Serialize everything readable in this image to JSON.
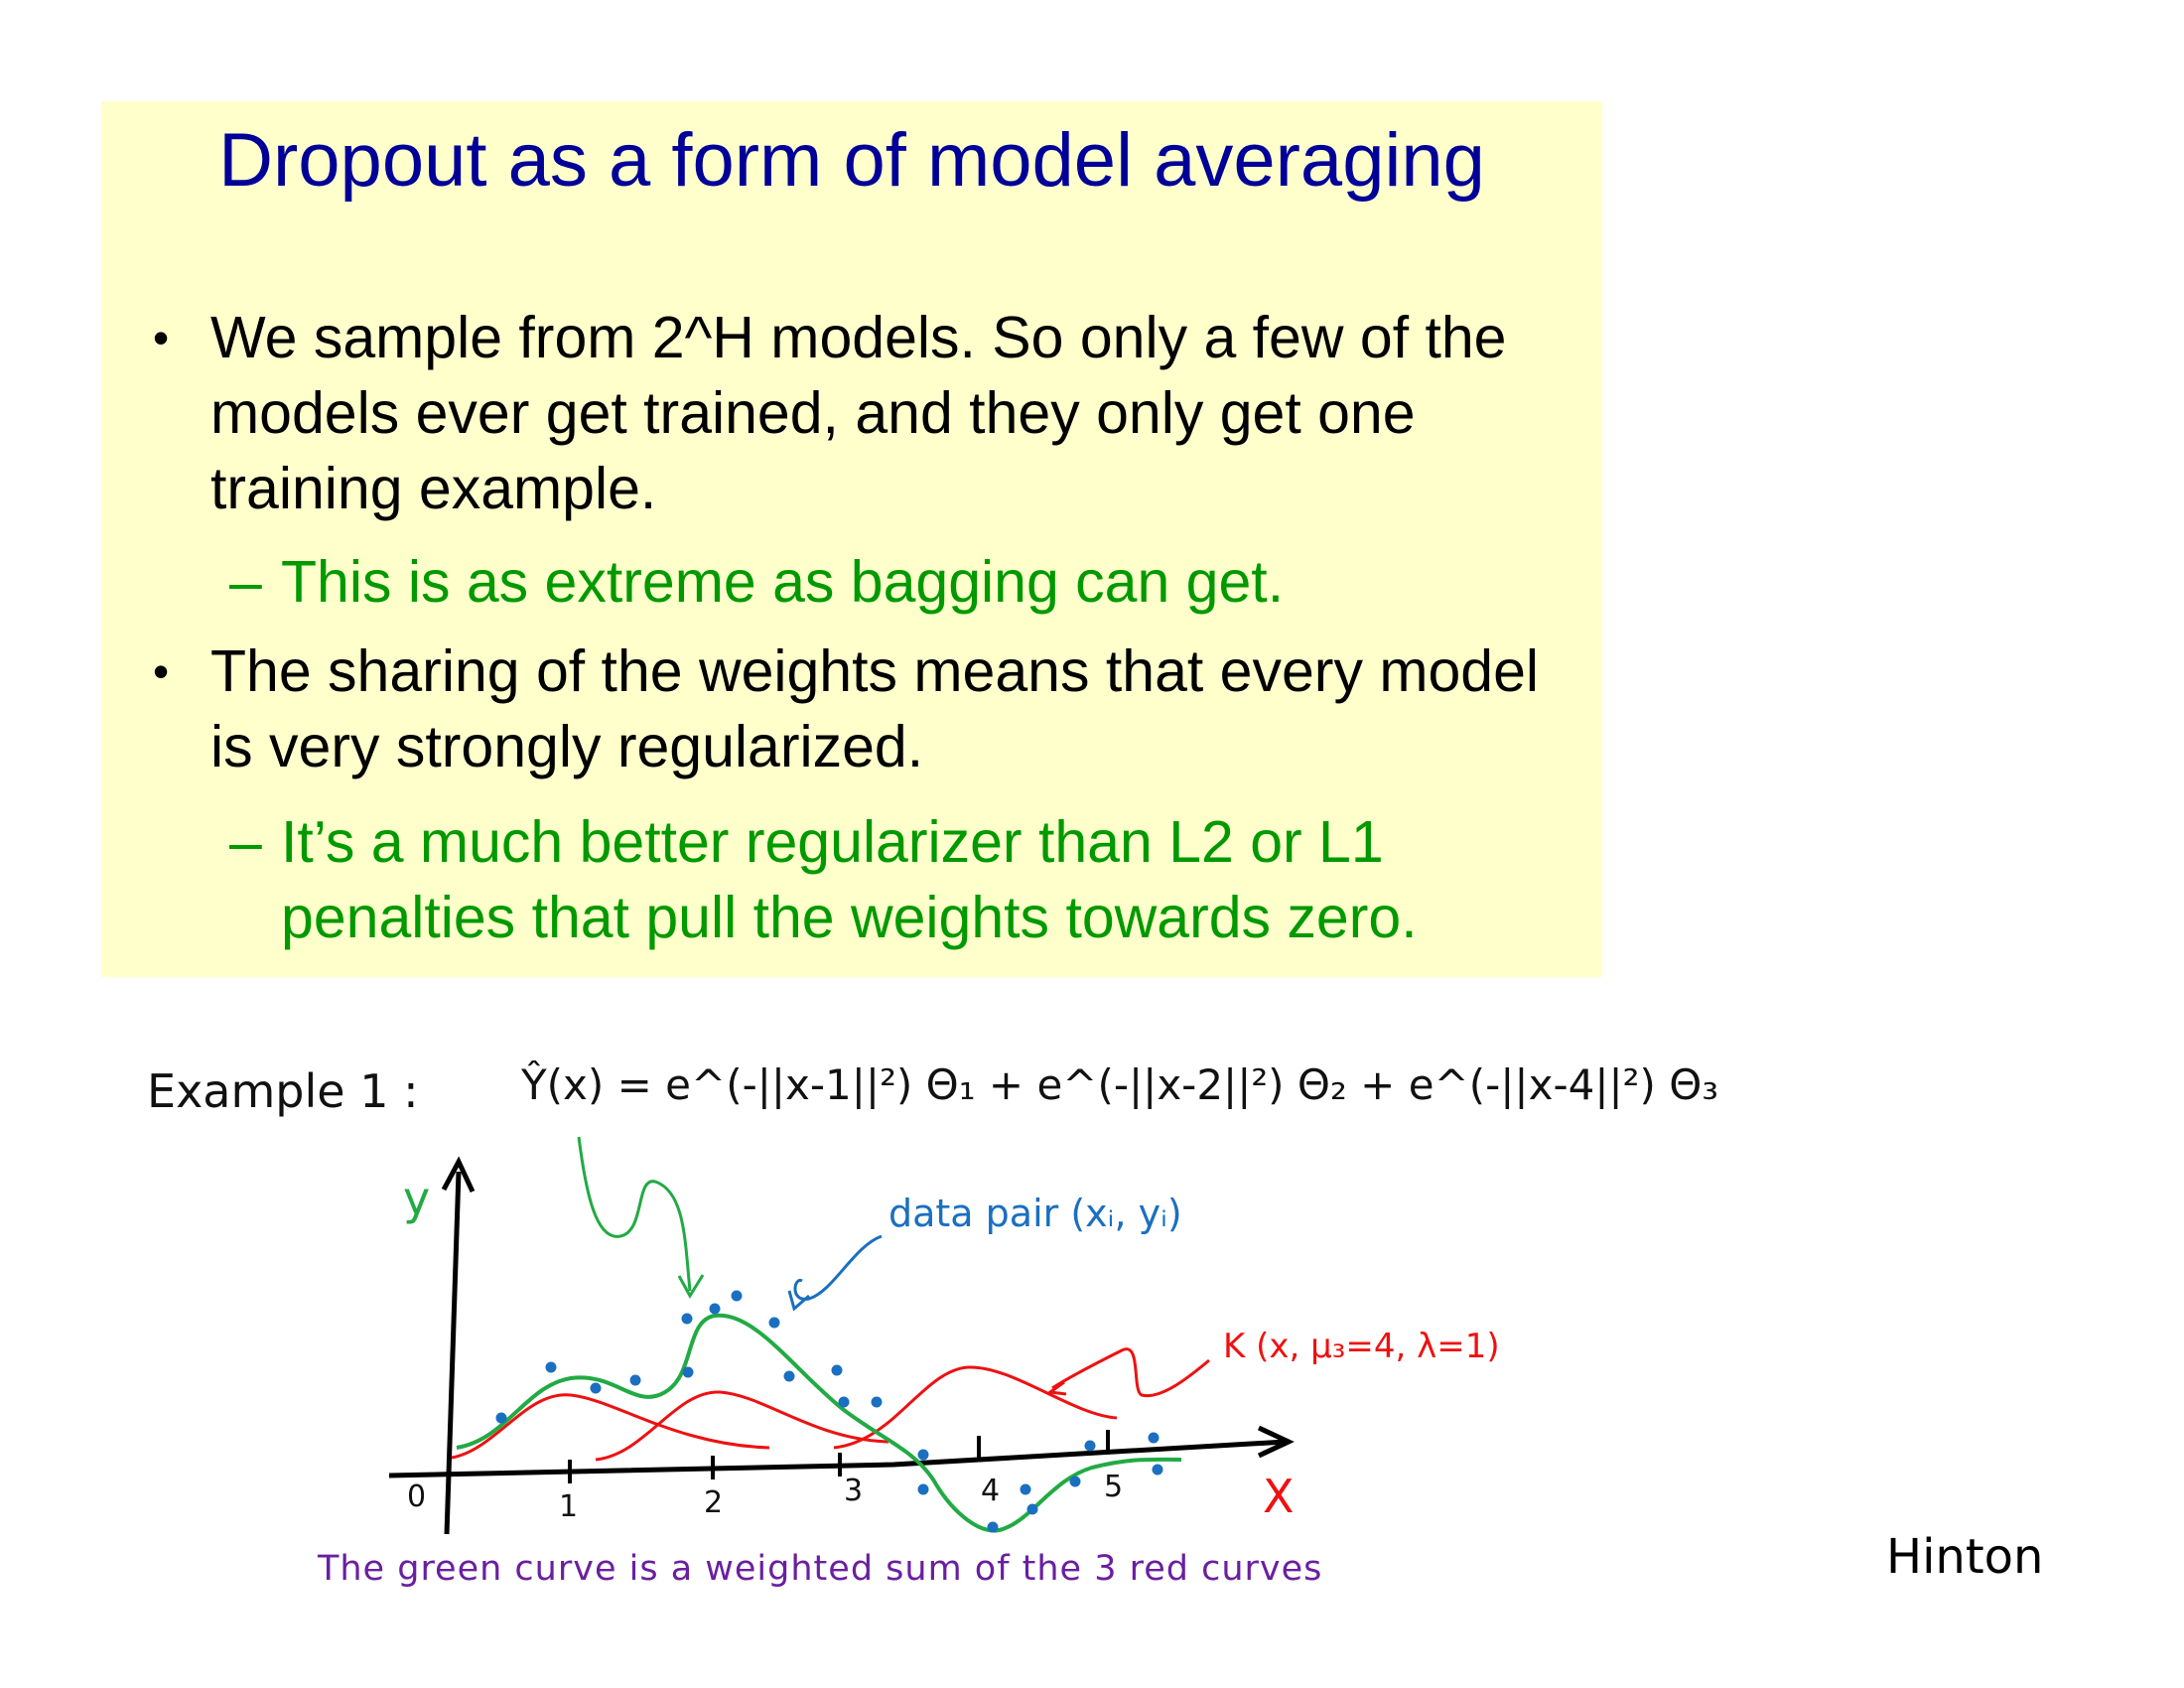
{
  "slide": {
    "title": "Dropout as a form of model averaging",
    "bullets": [
      {
        "text": "We sample from 2^H models. So only a few of the models ever get trained, and they only get one training example.",
        "sub": "This is as extreme as bagging can get."
      },
      {
        "text": "The sharing of the weights means that every model is very strongly regularized.",
        "sub": "It’s a much better regularizer than L2 or L1 penalties that pull the weights towards zero."
      }
    ],
    "bullet_symbol": "•",
    "dash_symbol": "–"
  },
  "handwritten": {
    "example_label": "Example 1 :",
    "formula": "Ŷ(x) = e^(-||x-1||²) Θ₁ + e^(-||x-2||²) Θ₂ + e^(-||x-4||²) Θ₃",
    "y_axis": "y",
    "x_axis": "X",
    "origin": "0",
    "data_pair_label": "data pair (xᵢ, yᵢ)",
    "kernel_label": "K (x, μ₃=4, λ=1)",
    "caption": "The green curve is a weighted sum of the 3 red curves",
    "x_ticks": [
      "1",
      "2",
      "3",
      "4",
      "5"
    ]
  },
  "colors": {
    "panel": "#ffffcc",
    "title": "#000099",
    "sub": "#009900",
    "green_curve": "#22aa44",
    "red_curves": "#ee1111",
    "points": "#1a6fc0",
    "caption": "#6a1fa0"
  },
  "author": "Hinton"
}
